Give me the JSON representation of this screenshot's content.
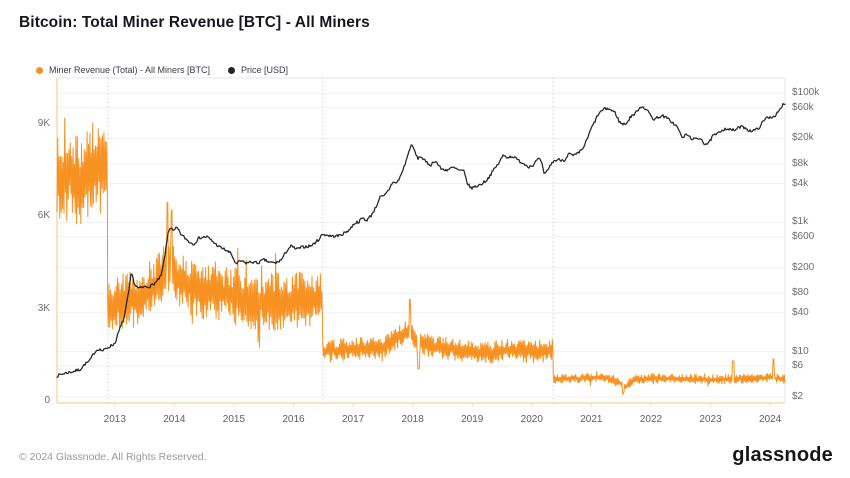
{
  "title": "Bitcoin: Total Miner Revenue [BTC] - All Miners",
  "footer": {
    "copyright": "© 2024 Glassnode. All Rights Reserved.",
    "brand": "glassnode"
  },
  "colors": {
    "revenue_orange": "#F79222",
    "price_black": "#23232B",
    "grid": "#F1F1F4",
    "halving_line": "#C6C6CC",
    "axis_line_orange": "#F6D8AC",
    "plot_border_gray": "#E7E7EB"
  },
  "chart_data": {
    "type": "line",
    "title": "Bitcoin: Total Miner Revenue [BTC] - All Miners",
    "x_axis": {
      "start": 2012.03,
      "end": 2024.25,
      "ticks": [
        2013,
        2014,
        2015,
        2016,
        2017,
        2018,
        2019,
        2020,
        2021,
        2022,
        2023,
        2024
      ]
    },
    "left_axis": {
      "unit": "BTC",
      "scale": "linear",
      "ticks": [
        {
          "label": "0",
          "value": 0
        },
        {
          "label": "3K",
          "value": 3000
        },
        {
          "label": "6K",
          "value": 6000
        },
        {
          "label": "9K",
          "value": 9000
        }
      ]
    },
    "right_axis": {
      "unit": "USD",
      "scale": "log",
      "ticks": [
        {
          "label": "$100k",
          "value": 100000
        },
        {
          "label": "$60k",
          "value": 60000
        },
        {
          "label": "$20k",
          "value": 20000
        },
        {
          "label": "$8k",
          "value": 8000
        },
        {
          "label": "$4k",
          "value": 4000
        },
        {
          "label": "$1k",
          "value": 1000
        },
        {
          "label": "$600",
          "value": 600
        },
        {
          "label": "$200",
          "value": 200
        },
        {
          "label": "$80",
          "value": 80
        },
        {
          "label": "$40",
          "value": 40
        },
        {
          "label": "$10",
          "value": 10
        },
        {
          "label": "$6",
          "value": 6
        },
        {
          "label": "$2",
          "value": 2
        }
      ]
    },
    "halvings": [
      2012.88,
      2016.49,
      2020.36
    ],
    "series": [
      {
        "name": "Miner Revenue (Total) - All Miners [BTC]",
        "axis": "left",
        "style": "noisy-band",
        "color": "#F79222",
        "eras": [
          {
            "start": 2012.03,
            "end": 2012.88,
            "amp": 1500,
            "points": [
              [
                2012.03,
                7200
              ],
              [
                2012.2,
                7500
              ],
              [
                2012.4,
                7100
              ],
              [
                2012.6,
                7600
              ],
              [
                2012.88,
                7400
              ]
            ]
          },
          {
            "start": 2012.88,
            "end": 2016.49,
            "amp": 950,
            "points": [
              [
                2012.88,
                2900
              ],
              [
                2013.1,
                3300
              ],
              [
                2013.4,
                3300
              ],
              [
                2013.7,
                3800
              ],
              [
                2013.92,
                4300
              ],
              [
                2014.1,
                3900
              ],
              [
                2014.4,
                3600
              ],
              [
                2014.8,
                3500
              ],
              [
                2015.2,
                3300
              ],
              [
                2015.6,
                3200
              ],
              [
                2016.0,
                3300
              ],
              [
                2016.49,
                3300
              ]
            ]
          },
          {
            "start": 2016.49,
            "end": 2020.36,
            "amp": 380,
            "points": [
              [
                2016.49,
                1600
              ],
              [
                2017.0,
                1700
              ],
              [
                2017.5,
                1750
              ],
              [
                2017.95,
                2300
              ],
              [
                2018.05,
                1900
              ],
              [
                2018.4,
                1750
              ],
              [
                2018.8,
                1650
              ],
              [
                2019.2,
                1550
              ],
              [
                2019.6,
                1650
              ],
              [
                2020.0,
                1600
              ],
              [
                2020.36,
                1650
              ]
            ]
          },
          {
            "start": 2020.36,
            "end": 2024.25,
            "amp": 160,
            "points": [
              [
                2020.36,
                700
              ],
              [
                2020.8,
                730
              ],
              [
                2021.2,
                780
              ],
              [
                2021.45,
                650
              ],
              [
                2021.55,
                420
              ],
              [
                2021.7,
                700
              ],
              [
                2022.0,
                740
              ],
              [
                2022.5,
                720
              ],
              [
                2023.0,
                700
              ],
              [
                2023.5,
                720
              ],
              [
                2024.0,
                760
              ],
              [
                2024.25,
                700
              ]
            ]
          }
        ],
        "spikes": [
          [
            2013.88,
            6450
          ],
          [
            2013.95,
            6200
          ],
          [
            2017.95,
            3300
          ],
          [
            2018.1,
            1050
          ],
          [
            2021.53,
            230
          ],
          [
            2023.38,
            1300
          ],
          [
            2024.06,
            1360
          ]
        ]
      },
      {
        "name": "Price [USD]",
        "axis": "right",
        "style": "line",
        "color": "#23232B",
        "points": [
          [
            2012.03,
            4.2
          ],
          [
            2012.15,
            4.6
          ],
          [
            2012.3,
            4.9
          ],
          [
            2012.42,
            5.3
          ],
          [
            2012.5,
            6.4
          ],
          [
            2012.58,
            7.2
          ],
          [
            2012.65,
            9.5
          ],
          [
            2012.72,
            11
          ],
          [
            2012.8,
            10.3
          ],
          [
            2012.88,
            11.5
          ],
          [
            2013.0,
            13.3
          ],
          [
            2013.08,
            22
          ],
          [
            2013.16,
            34
          ],
          [
            2013.24,
            90
          ],
          [
            2013.28,
            170
          ],
          [
            2013.33,
            110
          ],
          [
            2013.4,
            95
          ],
          [
            2013.5,
            100
          ],
          [
            2013.6,
            103
          ],
          [
            2013.7,
            120
          ],
          [
            2013.78,
            150
          ],
          [
            2013.84,
            300
          ],
          [
            2013.9,
            750
          ],
          [
            2013.94,
            850
          ],
          [
            2013.98,
            720
          ],
          [
            2014.04,
            830
          ],
          [
            2014.12,
            640
          ],
          [
            2014.25,
            500
          ],
          [
            2014.32,
            460
          ],
          [
            2014.42,
            580
          ],
          [
            2014.55,
            600
          ],
          [
            2014.65,
            500
          ],
          [
            2014.75,
            420
          ],
          [
            2014.85,
            380
          ],
          [
            2014.95,
            330
          ],
          [
            2015.04,
            220
          ],
          [
            2015.1,
            255
          ],
          [
            2015.2,
            235
          ],
          [
            2015.3,
            245
          ],
          [
            2015.4,
            235
          ],
          [
            2015.5,
            265
          ],
          [
            2015.6,
            240
          ],
          [
            2015.7,
            235
          ],
          [
            2015.8,
            265
          ],
          [
            2015.9,
            380
          ],
          [
            2015.96,
            430
          ],
          [
            2016.05,
            385
          ],
          [
            2016.15,
            415
          ],
          [
            2016.3,
            435
          ],
          [
            2016.42,
            540
          ],
          [
            2016.49,
            660
          ],
          [
            2016.55,
            640
          ],
          [
            2016.65,
            610
          ],
          [
            2016.75,
            620
          ],
          [
            2016.85,
            680
          ],
          [
            2016.95,
            790
          ],
          [
            2017.02,
            970
          ],
          [
            2017.1,
            1030
          ],
          [
            2017.16,
            1180
          ],
          [
            2017.22,
            1070
          ],
          [
            2017.3,
            1270
          ],
          [
            2017.38,
            1700
          ],
          [
            2017.45,
            2450
          ],
          [
            2017.52,
            2550
          ],
          [
            2017.6,
            3200
          ],
          [
            2017.67,
            4300
          ],
          [
            2017.72,
            4000
          ],
          [
            2017.78,
            4800
          ],
          [
            2017.85,
            7000
          ],
          [
            2017.92,
            11000
          ],
          [
            2017.97,
            16000
          ],
          [
            2018.02,
            13800
          ],
          [
            2018.08,
            9800
          ],
          [
            2018.14,
            10500
          ],
          [
            2018.22,
            8600
          ],
          [
            2018.3,
            7700
          ],
          [
            2018.38,
            9100
          ],
          [
            2018.48,
            6700
          ],
          [
            2018.58,
            6500
          ],
          [
            2018.68,
            7100
          ],
          [
            2018.78,
            6400
          ],
          [
            2018.86,
            6200
          ],
          [
            2018.92,
            4000
          ],
          [
            2018.98,
            3400
          ],
          [
            2019.06,
            3600
          ],
          [
            2019.15,
            3900
          ],
          [
            2019.25,
            4600
          ],
          [
            2019.35,
            6300
          ],
          [
            2019.45,
            8400
          ],
          [
            2019.52,
            11000
          ],
          [
            2019.6,
            10200
          ],
          [
            2019.68,
            10600
          ],
          [
            2019.76,
            9300
          ],
          [
            2019.85,
            8300
          ],
          [
            2019.95,
            7300
          ],
          [
            2020.03,
            7800
          ],
          [
            2020.1,
            9600
          ],
          [
            2020.16,
            8900
          ],
          [
            2020.21,
            5300
          ],
          [
            2020.28,
            6900
          ],
          [
            2020.36,
            8900
          ],
          [
            2020.45,
            9400
          ],
          [
            2020.55,
            9200
          ],
          [
            2020.62,
            11600
          ],
          [
            2020.7,
            10700
          ],
          [
            2020.78,
            11800
          ],
          [
            2020.85,
            13600
          ],
          [
            2020.92,
            18500
          ],
          [
            2021.0,
            29000
          ],
          [
            2021.06,
            37000
          ],
          [
            2021.12,
            48000
          ],
          [
            2021.2,
            56000
          ],
          [
            2021.27,
            58500
          ],
          [
            2021.33,
            55000
          ],
          [
            2021.4,
            50000
          ],
          [
            2021.47,
            36000
          ],
          [
            2021.53,
            33000
          ],
          [
            2021.6,
            35000
          ],
          [
            2021.67,
            45000
          ],
          [
            2021.73,
            47500
          ],
          [
            2021.8,
            59000
          ],
          [
            2021.86,
            63000
          ],
          [
            2021.92,
            56000
          ],
          [
            2021.98,
            48000
          ],
          [
            2022.05,
            39000
          ],
          [
            2022.12,
            43000
          ],
          [
            2022.2,
            44500
          ],
          [
            2022.3,
            39500
          ],
          [
            2022.38,
            34000
          ],
          [
            2022.45,
            29500
          ],
          [
            2022.52,
            20500
          ],
          [
            2022.6,
            23000
          ],
          [
            2022.68,
            20000
          ],
          [
            2022.76,
            19300
          ],
          [
            2022.84,
            20300
          ],
          [
            2022.9,
            16300
          ],
          [
            2022.97,
            16800
          ],
          [
            2023.04,
            22000
          ],
          [
            2023.12,
            23500
          ],
          [
            2023.2,
            27500
          ],
          [
            2023.28,
            28500
          ],
          [
            2023.35,
            26800
          ],
          [
            2023.42,
            27200
          ],
          [
            2023.5,
            30300
          ],
          [
            2023.58,
            29600
          ],
          [
            2023.65,
            26200
          ],
          [
            2023.73,
            26600
          ],
          [
            2023.8,
            28200
          ],
          [
            2023.87,
            35000
          ],
          [
            2023.94,
            42000
          ],
          [
            2024.0,
            42800
          ],
          [
            2024.06,
            43500
          ],
          [
            2024.12,
            49000
          ],
          [
            2024.18,
            57000
          ],
          [
            2024.22,
            68000
          ],
          [
            2024.25,
            66000
          ]
        ]
      }
    ]
  }
}
